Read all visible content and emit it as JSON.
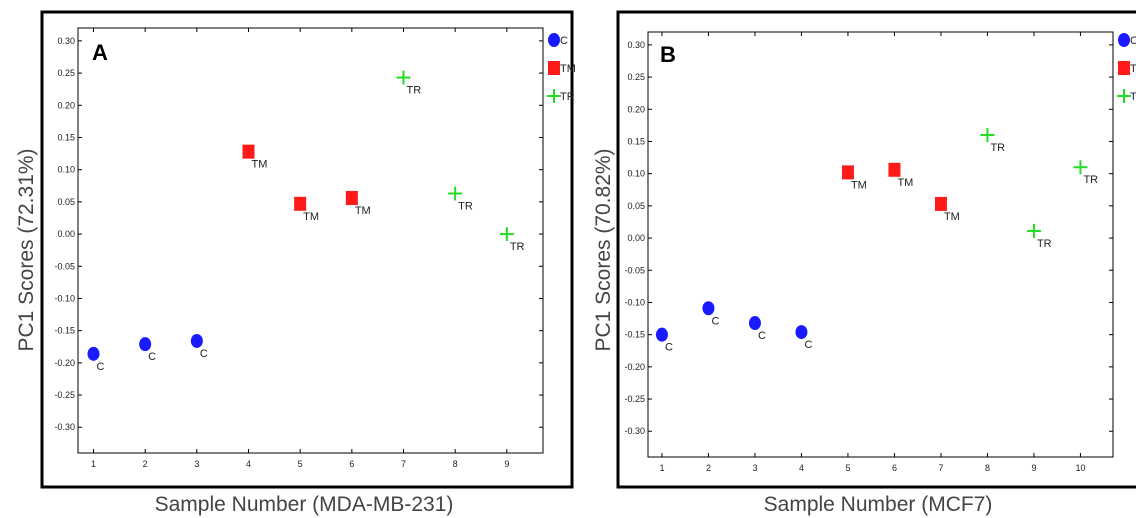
{
  "chart_data": [
    {
      "type": "scatter",
      "panel_label": "A",
      "xlabel": "Sample Number (MDA-MB-231)",
      "ylabel": "PC1 Scores (72.31%)",
      "ylim": [
        -0.34,
        0.32
      ],
      "xlim": [
        0.7,
        9.7
      ],
      "x_ticks": [
        1,
        2,
        3,
        4,
        5,
        6,
        7,
        8,
        9
      ],
      "y_ticks": [
        0.3,
        0.25,
        0.2,
        0.15,
        0.1,
        0.05,
        0.0,
        -0.05,
        -0.1,
        -0.15,
        -0.2,
        -0.25,
        -0.3
      ],
      "y_tick_labels": [
        "0.30",
        "0.25",
        "0.20",
        "0.15",
        "0.10",
        "0.05",
        "0.00",
        "-0.05",
        "-0.10",
        "-0.15",
        "-0.20",
        "-0.25",
        "-0.30"
      ],
      "grid": false,
      "legend_position": "right",
      "series": [
        {
          "name": "C",
          "marker": "circle",
          "color": "#1a1aff",
          "points": [
            {
              "x": 1,
              "y": -0.186
            },
            {
              "x": 2,
              "y": -0.171
            },
            {
              "x": 3,
              "y": -0.166
            }
          ]
        },
        {
          "name": "TM",
          "marker": "square",
          "color": "#ff1a1a",
          "points": [
            {
              "x": 4,
              "y": 0.128
            },
            {
              "x": 5,
              "y": 0.047
            },
            {
              "x": 6,
              "y": 0.056
            }
          ]
        },
        {
          "name": "TR",
          "marker": "plus",
          "color": "#22dd22",
          "points": [
            {
              "x": 7,
              "y": 0.243
            },
            {
              "x": 8,
              "y": 0.063
            },
            {
              "x": 9,
              "y": 0.0
            }
          ]
        }
      ],
      "legend": [
        "C",
        "TM",
        "TR"
      ]
    },
    {
      "type": "scatter",
      "panel_label": "B",
      "xlabel": "Sample Number (MCF7)",
      "ylabel": "PC1 Scores (70.82%)",
      "ylim": [
        -0.34,
        0.32
      ],
      "xlim": [
        0.7,
        10.7
      ],
      "x_ticks": [
        1,
        2,
        3,
        4,
        5,
        6,
        7,
        8,
        9,
        10
      ],
      "y_ticks": [
        0.3,
        0.25,
        0.2,
        0.15,
        0.1,
        0.05,
        0.0,
        -0.05,
        -0.1,
        -0.15,
        -0.2,
        -0.25,
        -0.3
      ],
      "y_tick_labels": [
        "0.30",
        "0.25",
        "0.20",
        "0.15",
        "0.10",
        "0.05",
        "0.00",
        "-0.05",
        "-0.10",
        "-0.15",
        "-0.20",
        "-0.25",
        "-0.30"
      ],
      "grid": false,
      "legend_position": "right",
      "series": [
        {
          "name": "C",
          "marker": "circle",
          "color": "#1a1aff",
          "points": [
            {
              "x": 1,
              "y": -0.15
            },
            {
              "x": 2,
              "y": -0.109
            },
            {
              "x": 3,
              "y": -0.132
            },
            {
              "x": 4,
              "y": -0.146
            }
          ]
        },
        {
          "name": "TM",
          "marker": "square",
          "color": "#ff1a1a",
          "points": [
            {
              "x": 5,
              "y": 0.102
            },
            {
              "x": 6,
              "y": 0.106
            },
            {
              "x": 7,
              "y": 0.053
            }
          ]
        },
        {
          "name": "TR",
          "marker": "plus",
          "color": "#22dd22",
          "points": [
            {
              "x": 8,
              "y": 0.16
            },
            {
              "x": 9,
              "y": 0.011
            },
            {
              "x": 10,
              "y": 0.11
            }
          ]
        }
      ],
      "legend": [
        "C",
        "TM",
        "TR"
      ]
    }
  ]
}
